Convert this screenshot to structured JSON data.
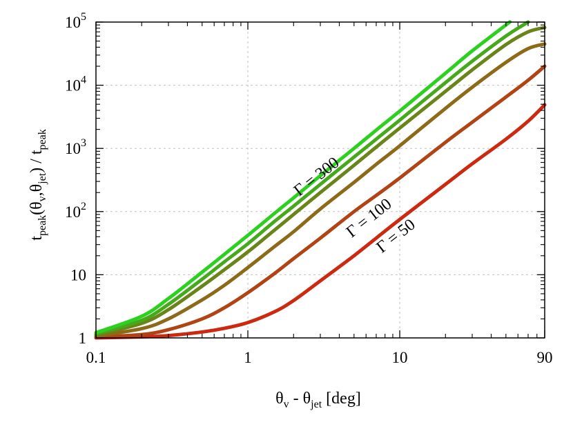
{
  "chart_data": {
    "type": "line",
    "title": "",
    "xlabel": {
      "text": "θ",
      "sub1": "v",
      "mid": " - θ",
      "sub2": "jet",
      "tail": " [deg]"
    },
    "ylabel": {
      "t1": "t",
      "s1": "peak",
      "t2": "(θ",
      "s2": "v",
      "t3": ",θ",
      "s3": "jet",
      "t4": ") / t",
      "s4": "peak"
    },
    "xscale": "log",
    "yscale": "log",
    "xlim": [
      0.1,
      90
    ],
    "ylim": [
      1,
      100000
    ],
    "grid": true,
    "x_ticks": [
      {
        "value": 0.1,
        "label": "0.1"
      },
      {
        "value": 1,
        "label": "1"
      },
      {
        "value": 10,
        "label": "10"
      },
      {
        "value": 90,
        "label": "90"
      }
    ],
    "y_ticks": [
      {
        "value": 1,
        "base": "1",
        "exp": ""
      },
      {
        "value": 10,
        "base": "10",
        "exp": ""
      },
      {
        "value": 100,
        "base": "10",
        "exp": "2"
      },
      {
        "value": 1000,
        "base": "10",
        "exp": "3"
      },
      {
        "value": 10000,
        "base": "10",
        "exp": "4"
      },
      {
        "value": 100000,
        "base": "10",
        "exp": "5"
      }
    ],
    "series": [
      {
        "color": "#cc2a10",
        "points": [
          [
            0.1,
            1.0
          ],
          [
            0.2,
            1.04
          ],
          [
            0.3,
            1.09
          ],
          [
            0.5,
            1.24
          ],
          [
            0.7,
            1.42
          ],
          [
            1,
            1.75
          ],
          [
            1.5,
            2.6
          ],
          [
            2,
            3.9
          ],
          [
            3,
            8
          ],
          [
            5,
            20
          ],
          [
            7,
            38
          ],
          [
            10,
            75
          ],
          [
            20,
            270
          ],
          [
            30,
            570
          ],
          [
            50,
            1400
          ],
          [
            70,
            2700
          ],
          [
            90,
            4900
          ]
        ]
      },
      {
        "color": "#b14414",
        "points": [
          [
            0.1,
            1.03
          ],
          [
            0.2,
            1.13
          ],
          [
            0.3,
            1.35
          ],
          [
            0.5,
            2.0
          ],
          [
            0.7,
            3.0
          ],
          [
            1,
            5.2
          ],
          [
            1.5,
            10.5
          ],
          [
            2,
            18
          ],
          [
            3,
            38
          ],
          [
            5,
            100
          ],
          [
            7,
            180
          ],
          [
            10,
            340
          ],
          [
            20,
            1250
          ],
          [
            30,
            2600
          ],
          [
            50,
            6500
          ],
          [
            70,
            12000
          ],
          [
            90,
            20000
          ]
        ]
      },
      {
        "color": "#8c6a17",
        "points": [
          [
            0.1,
            1.07
          ],
          [
            0.2,
            1.4
          ],
          [
            0.3,
            2.0
          ],
          [
            0.5,
            4.0
          ],
          [
            0.7,
            6.8
          ],
          [
            1,
            13
          ],
          [
            1.5,
            28
          ],
          [
            2,
            48
          ],
          [
            3,
            110
          ],
          [
            5,
            290
          ],
          [
            7,
            560
          ],
          [
            10,
            1100
          ],
          [
            20,
            4300
          ],
          [
            30,
            9300
          ],
          [
            50,
            23000
          ],
          [
            70,
            38000
          ],
          [
            90,
            45000
          ]
        ]
      },
      {
        "color": "#6a8419",
        "points": [
          [
            0.1,
            1.12
          ],
          [
            0.2,
            1.7
          ],
          [
            0.3,
            2.8
          ],
          [
            0.5,
            6.6
          ],
          [
            0.7,
            12
          ],
          [
            1,
            23
          ],
          [
            1.5,
            51
          ],
          [
            2,
            90
          ],
          [
            3,
            200
          ],
          [
            5,
            540
          ],
          [
            7,
            1050
          ],
          [
            10,
            2100
          ],
          [
            20,
            8000
          ],
          [
            30,
            17500
          ],
          [
            50,
            44000
          ],
          [
            70,
            70000
          ],
          [
            90,
            82000
          ]
        ]
      },
      {
        "color": "#46a91c",
        "points": [
          [
            0.1,
            1.16
          ],
          [
            0.2,
            1.9
          ],
          [
            0.3,
            3.4
          ],
          [
            0.5,
            8.5
          ],
          [
            0.7,
            16
          ],
          [
            1,
            31
          ],
          [
            1.5,
            70
          ],
          [
            2,
            122
          ],
          [
            3,
            270
          ],
          [
            5,
            730
          ],
          [
            7,
            1400
          ],
          [
            10,
            2800
          ],
          [
            20,
            11000
          ],
          [
            30,
            24000
          ],
          [
            50,
            60000
          ],
          [
            70,
            100000
          ]
        ]
      },
      {
        "color": "#2cd11f",
        "points": [
          [
            0.1,
            1.21
          ],
          [
            0.2,
            2.2
          ],
          [
            0.3,
            4.2
          ],
          [
            0.5,
            11
          ],
          [
            0.7,
            21
          ],
          [
            1,
            42
          ],
          [
            1.5,
            94
          ],
          [
            2,
            165
          ],
          [
            3,
            370
          ],
          [
            5,
            1000
          ],
          [
            7,
            1950
          ],
          [
            10,
            3900
          ],
          [
            20,
            15500
          ],
          [
            30,
            35000
          ],
          [
            50,
            90000
          ],
          [
            53,
            100000
          ]
        ]
      }
    ],
    "annotations": [
      {
        "text": "Γ = 300"
      },
      {
        "text": "Γ = 100"
      },
      {
        "text": "Γ = 50"
      }
    ]
  }
}
